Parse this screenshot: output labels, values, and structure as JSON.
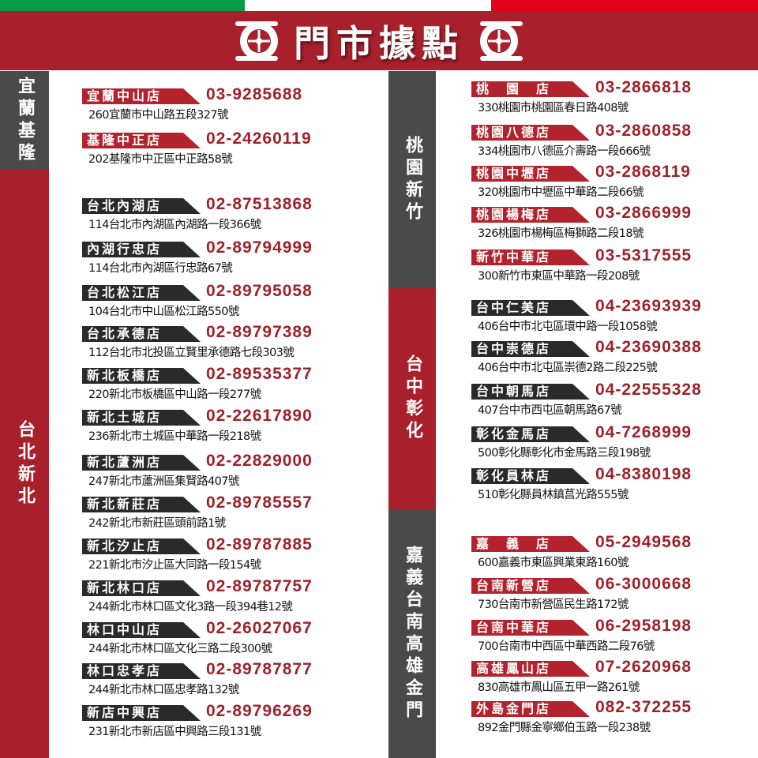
{
  "header": {
    "title": "門市據點",
    "stripe_colors": [
      "#0a9a48",
      "#ffffff",
      "#e3001b"
    ],
    "band_color": "#a8202b",
    "icon": "tire-icon"
  },
  "regions": [
    {
      "label": "宜蘭基隆",
      "color": "#4a4a4a"
    },
    {
      "label": "台北新北",
      "color": "#a8202b"
    },
    {
      "label": "桃園新竹",
      "color": "#4a4a4a"
    },
    {
      "label": "台中彰化",
      "color": "#a8202b"
    },
    {
      "label": "嘉義台南高雄金門",
      "color": "#4a4a4a"
    }
  ],
  "stores": [
    {
      "name": "宜蘭中山店",
      "phone": "03-9285688",
      "address": "260宜蘭市中山路五段327號",
      "tag": "red"
    },
    {
      "name": "基隆中正店",
      "phone": "02-24260119",
      "address": "202基隆市中正區中正路58號",
      "tag": "red"
    },
    {
      "name": "台北內湖店",
      "phone": "02-87513868",
      "address": "114台北市內湖區內湖路一段366號",
      "tag": "dark"
    },
    {
      "name": "內湖行忠店",
      "phone": "02-89794999",
      "address": "114台北市內湖區行忠路67號",
      "tag": "dark"
    },
    {
      "name": "台北松江店",
      "phone": "02-89795058",
      "address": "104台北市中山區松江路550號",
      "tag": "dark"
    },
    {
      "name": "台北承德店",
      "phone": "02-89797389",
      "address": "112台北市北投區立賢里承德路七段303號",
      "tag": "dark"
    },
    {
      "name": "新北板橋店",
      "phone": "02-89535377",
      "address": "220新北市板橋區中山路一段277號",
      "tag": "dark"
    },
    {
      "name": "新北土城店",
      "phone": "02-22617890",
      "address": "236新北市土城區中華路一段218號",
      "tag": "dark"
    },
    {
      "name": "新北蘆洲店",
      "phone": "02-22829000",
      "address": "247新北市蘆洲區集賢路407號",
      "tag": "dark"
    },
    {
      "name": "新北新莊店",
      "phone": "02-89785557",
      "address": "242新北市新莊區頭前路1號",
      "tag": "dark"
    },
    {
      "name": "新北汐止店",
      "phone": "02-89787885",
      "address": "221新北市汐止區大同路一段154號",
      "tag": "dark"
    },
    {
      "name": "新北林口店",
      "phone": "02-89787757",
      "address": "244新北市林口區文化3路一段394巷12號",
      "tag": "dark"
    },
    {
      "name": "林口中山店",
      "phone": "02-26027067",
      "address": "244新北市林口區文化三路二段300號",
      "tag": "dark"
    },
    {
      "name": "林口忠孝店",
      "phone": "02-89787877",
      "address": "244新北市林口區忠孝路132號",
      "tag": "dark"
    },
    {
      "name": "新店中興店",
      "phone": "02-89796269",
      "address": "231新北市新店區中興路三段131號",
      "tag": "dark"
    },
    {
      "name": "桃　園　店",
      "phone": "03-2866818",
      "address": "330桃園市桃園區春日路408號",
      "tag": "red"
    },
    {
      "name": "桃園八德店",
      "phone": "03-2860858",
      "address": "334桃園市八德區介壽路一段666號",
      "tag": "red"
    },
    {
      "name": "桃園中壢店",
      "phone": "03-2868119",
      "address": "320桃園市中壢區中華路二段66號",
      "tag": "red"
    },
    {
      "name": "桃園楊梅店",
      "phone": "03-2866999",
      "address": "326桃園市楊梅區梅獅路二段18號",
      "tag": "red"
    },
    {
      "name": "新竹中華店",
      "phone": "03-5317555",
      "address": "300新竹市東區中華路一段208號",
      "tag": "red"
    },
    {
      "name": "台中仁美店",
      "phone": "04-23693939",
      "address": "406台中市北屯區環中路一段1058號",
      "tag": "dark"
    },
    {
      "name": "台中崇德店",
      "phone": "04-23690388",
      "address": "406台中市北屯區崇德2路二段225號",
      "tag": "dark"
    },
    {
      "name": "台中朝馬店",
      "phone": "04-22555328",
      "address": "407台中市西屯區朝馬路67號",
      "tag": "dark"
    },
    {
      "name": "彰化金馬店",
      "phone": "04-7268999",
      "address": "500彰化縣彰化市金馬路三段198號",
      "tag": "dark"
    },
    {
      "name": "彰化員林店",
      "phone": "04-8380198",
      "address": "510彰化縣員林鎮莒光路555號",
      "tag": "dark"
    },
    {
      "name": "嘉　義　店",
      "phone": "05-2949568",
      "address": "600嘉義市東區興業東路160號",
      "tag": "red"
    },
    {
      "name": "台南新營店",
      "phone": "06-3000668",
      "address": "730台南市新營區民生路172號",
      "tag": "red"
    },
    {
      "name": "台南中華店",
      "phone": "06-2958198",
      "address": "700台南市中西區中華西路二段76號",
      "tag": "red"
    },
    {
      "name": "高雄鳳山店",
      "phone": "07-2620968",
      "address": "830高雄市鳳山區五甲一路261號",
      "tag": "red"
    },
    {
      "name": "外島金門店",
      "phone": "082-372255",
      "address": "892金門縣金寧鄉伯玉路一段238號",
      "tag": "red"
    }
  ]
}
